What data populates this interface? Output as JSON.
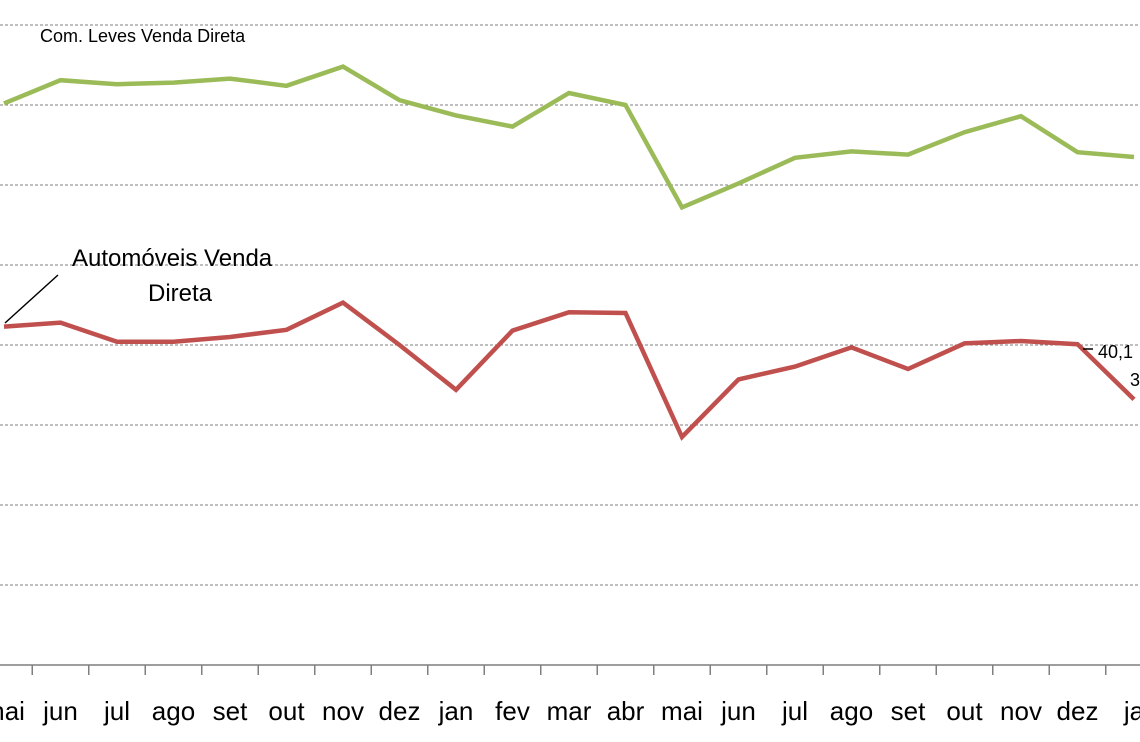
{
  "chart_data": {
    "type": "line",
    "categories": [
      "mai",
      "jun",
      "jul",
      "ago",
      "set",
      "out",
      "nov",
      "dez",
      "jan",
      "fev",
      "mar",
      "abr",
      "mai",
      "jun",
      "jul",
      "ago",
      "set",
      "out",
      "nov",
      "dez",
      "ja"
    ],
    "ylim": [
      0,
      80
    ],
    "grid": true,
    "series": [
      {
        "name": "Com. Leves Venda Direta",
        "color": "#9BBB59",
        "values": [
          70.2,
          73.1,
          72.6,
          72.8,
          73.3,
          72.4,
          74.8,
          70.6,
          68.7,
          67.3,
          71.5,
          70.0,
          57.2,
          60.2,
          63.4,
          64.2,
          63.8,
          66.6,
          68.6,
          64.1,
          63.5
        ]
      },
      {
        "name": "Automóveis Venda Direta",
        "color": "#C0504D",
        "values": [
          42.3,
          42.8,
          40.4,
          40.4,
          41.0,
          41.9,
          45.3,
          40.0,
          34.4,
          41.8,
          44.1,
          44.0,
          28.5,
          35.7,
          37.3,
          39.7,
          37.0,
          40.2,
          40.5,
          40.1,
          33.2
        ]
      }
    ],
    "data_labels": [
      "40,1",
      "3"
    ]
  }
}
